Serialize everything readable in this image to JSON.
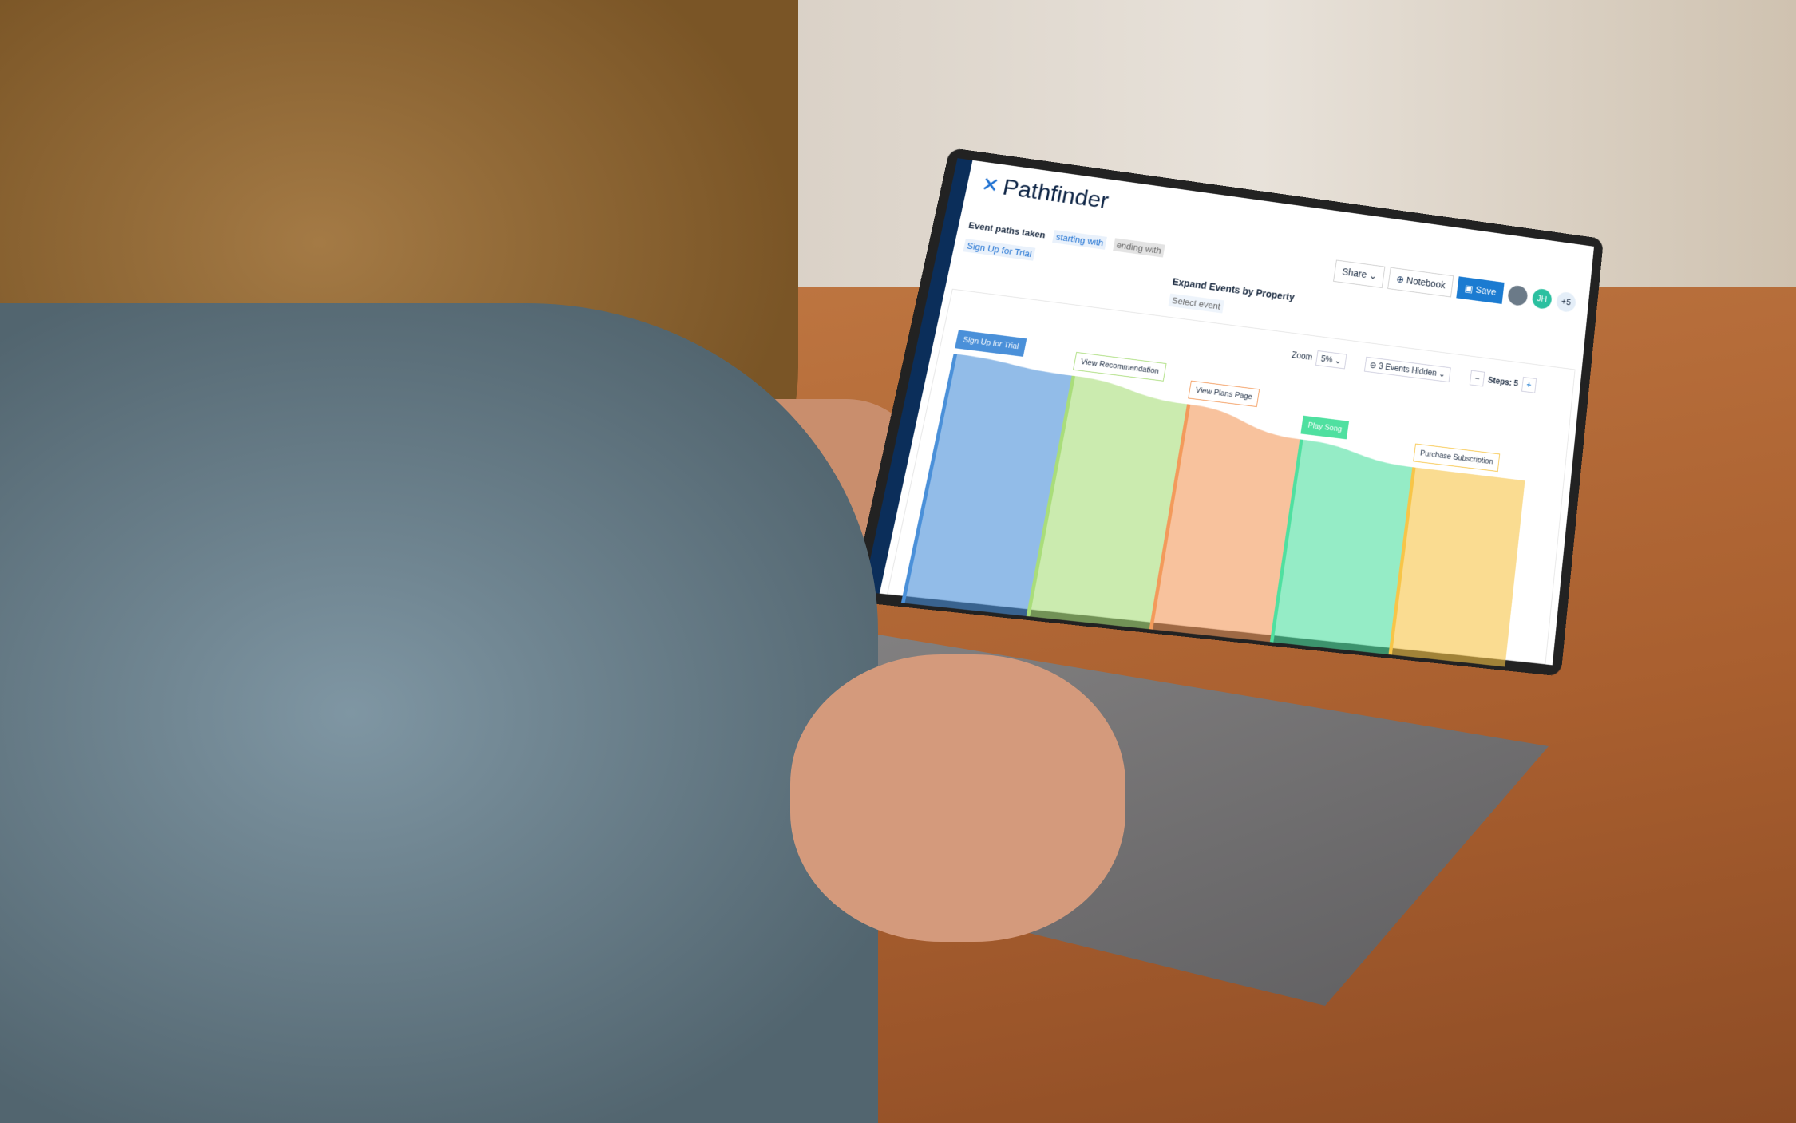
{
  "app": {
    "title": "Pathfinder",
    "logo_icon": "pathfinder-logo-icon"
  },
  "query": {
    "label": "Event paths taken",
    "starting": "starting with",
    "ending": "ending with",
    "start_event": "Sign Up for Trial"
  },
  "expand": {
    "title": "Expand Events by Property",
    "placeholder": "Select event"
  },
  "toolbar": {
    "share": "Share",
    "notebook": "Notebook",
    "save": "Save",
    "avatar_initials": "JH",
    "more_users": "+5"
  },
  "controls": {
    "zoom_label": "Zoom",
    "zoom_value": "5%",
    "hidden": "3 Events Hidden",
    "steps_label": "Steps: 5"
  },
  "colors": {
    "accent": "#1b7bd1",
    "rail": "#0b2e5a"
  },
  "chart_data": {
    "type": "sankey",
    "steps": [
      {
        "label": "Sign Up for Trial",
        "color": "#4a90d9"
      },
      {
        "label": "View Recommendation",
        "color": "#a9dd7a"
      },
      {
        "label": "View Plans Page",
        "color": "#f39a5b"
      },
      {
        "label": "Play Song",
        "color": "#4fe0a0"
      },
      {
        "label": "Purchase Subscription",
        "color": "#f7c548"
      }
    ]
  }
}
